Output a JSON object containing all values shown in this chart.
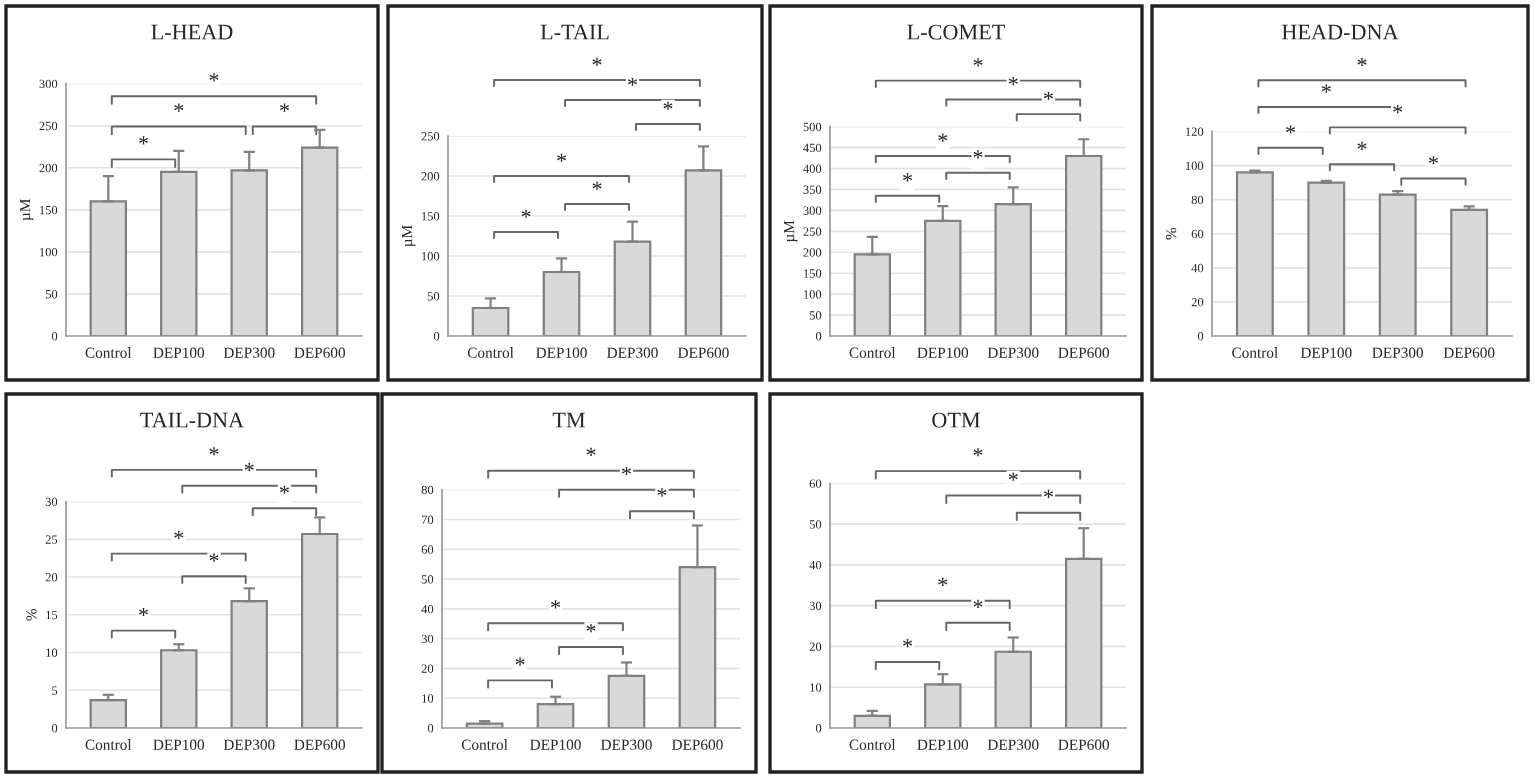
{
  "chart_data": [
    {
      "type": "bar",
      "title": "L-HEAD",
      "ylabel": "µM",
      "categories": [
        "Control",
        "DEP100",
        "DEP300",
        "DEP600"
      ],
      "values": [
        160,
        195,
        197,
        224
      ],
      "errors": [
        [
          160,
          190
        ],
        [
          195,
          220
        ],
        [
          197,
          219
        ],
        [
          224,
          245
        ]
      ],
      "color": "#d9d9d9",
      "ylim": [
        0,
        300
      ],
      "yticks": [
        0,
        50,
        100,
        150,
        200,
        250,
        300
      ],
      "grid": "y",
      "annotations": [
        "*",
        "*",
        "*",
        "*"
      ]
    },
    {
      "type": "bar",
      "title": "L-TAIL",
      "ylabel": "µM",
      "categories": [
        "Control",
        "DEP100",
        "DEP300",
        "DEP600"
      ],
      "values": [
        35,
        80,
        118,
        207
      ],
      "errors": [
        [
          35,
          47
        ],
        [
          80,
          97
        ],
        [
          118,
          143
        ],
        [
          207,
          237
        ]
      ],
      "color": "#d9d9d9",
      "ylim": [
        0,
        250
      ],
      "yticks": [
        0,
        50,
        100,
        150,
        200,
        250
      ],
      "grid": "y",
      "annotations": [
        "*",
        "*",
        "*",
        "*",
        "*",
        "*"
      ]
    },
    {
      "type": "bar",
      "title": "L-COMET",
      "ylabel": "µM",
      "categories": [
        "Control",
        "DEP100",
        "DEP300",
        "DEP600"
      ],
      "values": [
        195,
        275,
        315,
        430
      ],
      "errors": [
        [
          195,
          237
        ],
        [
          275,
          310
        ],
        [
          315,
          355
        ],
        [
          430,
          470
        ]
      ],
      "color": "#d9d9d9",
      "ylim": [
        0,
        500
      ],
      "yticks": [
        0,
        50,
        100,
        150,
        200,
        250,
        300,
        350,
        400,
        450,
        500
      ],
      "grid": "y",
      "annotations": [
        "*",
        "*",
        "*",
        "*",
        "*",
        "*"
      ]
    },
    {
      "type": "bar",
      "title": "HEAD-DNA",
      "ylabel": "%",
      "categories": [
        "Control",
        "DEP100",
        "DEP300",
        "DEP600"
      ],
      "values": [
        96,
        90,
        83,
        74
      ],
      "errors": [
        [
          96,
          97
        ],
        [
          90,
          91
        ],
        [
          83,
          85
        ],
        [
          74,
          76
        ]
      ],
      "color": "#d9d9d9",
      "ylim": [
        0,
        120
      ],
      "yticks": [
        0,
        20,
        40,
        60,
        80,
        100,
        120
      ],
      "grid": "y",
      "annotations": [
        "*",
        "*",
        "*",
        "*",
        "*",
        "*"
      ]
    },
    {
      "type": "bar",
      "title": "TAIL-DNA",
      "ylabel": "%",
      "categories": [
        "Control",
        "DEP100",
        "DEP300",
        "DEP600"
      ],
      "values": [
        3.7,
        10.3,
        16.8,
        25.7
      ],
      "errors": [
        [
          3.7,
          4.4
        ],
        [
          10.3,
          11.1
        ],
        [
          16.8,
          18.5
        ],
        [
          25.7,
          27.9
        ]
      ],
      "color": "#d9d9d9",
      "ylim": [
        0,
        30
      ],
      "yticks": [
        0,
        5,
        10,
        15,
        20,
        25,
        30
      ],
      "grid": "y",
      "annotations": [
        "*",
        "*",
        "*",
        "*",
        "*",
        "*"
      ]
    },
    {
      "type": "bar",
      "title": "TM",
      "categories": [
        "Control",
        "DEP100",
        "DEP300",
        "DEP600"
      ],
      "values": [
        1.5,
        8,
        17.5,
        54
      ],
      "errors": [
        [
          1.5,
          2.3
        ],
        [
          8,
          10.5
        ],
        [
          17.5,
          22
        ],
        [
          54,
          68
        ]
      ],
      "color": "#d9d9d9",
      "ylim": [
        0,
        80
      ],
      "yticks": [
        0,
        10,
        20,
        30,
        40,
        50,
        60,
        70,
        80
      ],
      "grid": "y",
      "annotations": [
        "*",
        "*",
        "*",
        "*",
        "*",
        "*"
      ]
    },
    {
      "type": "bar",
      "title": "OTM",
      "categories": [
        "Control",
        "DEP100",
        "DEP300",
        "DEP600"
      ],
      "values": [
        3,
        10.7,
        18.7,
        41.5
      ],
      "errors": [
        [
          3,
          4.2
        ],
        [
          10.7,
          13.2
        ],
        [
          18.7,
          22.2
        ],
        [
          41.5,
          49
        ]
      ],
      "color": "#d9d9d9",
      "ylim": [
        0,
        60
      ],
      "yticks": [
        0,
        10,
        20,
        30,
        40,
        50,
        60
      ],
      "grid": "y",
      "annotations": [
        "*",
        "*",
        "*",
        "*",
        "*",
        "*"
      ]
    }
  ]
}
